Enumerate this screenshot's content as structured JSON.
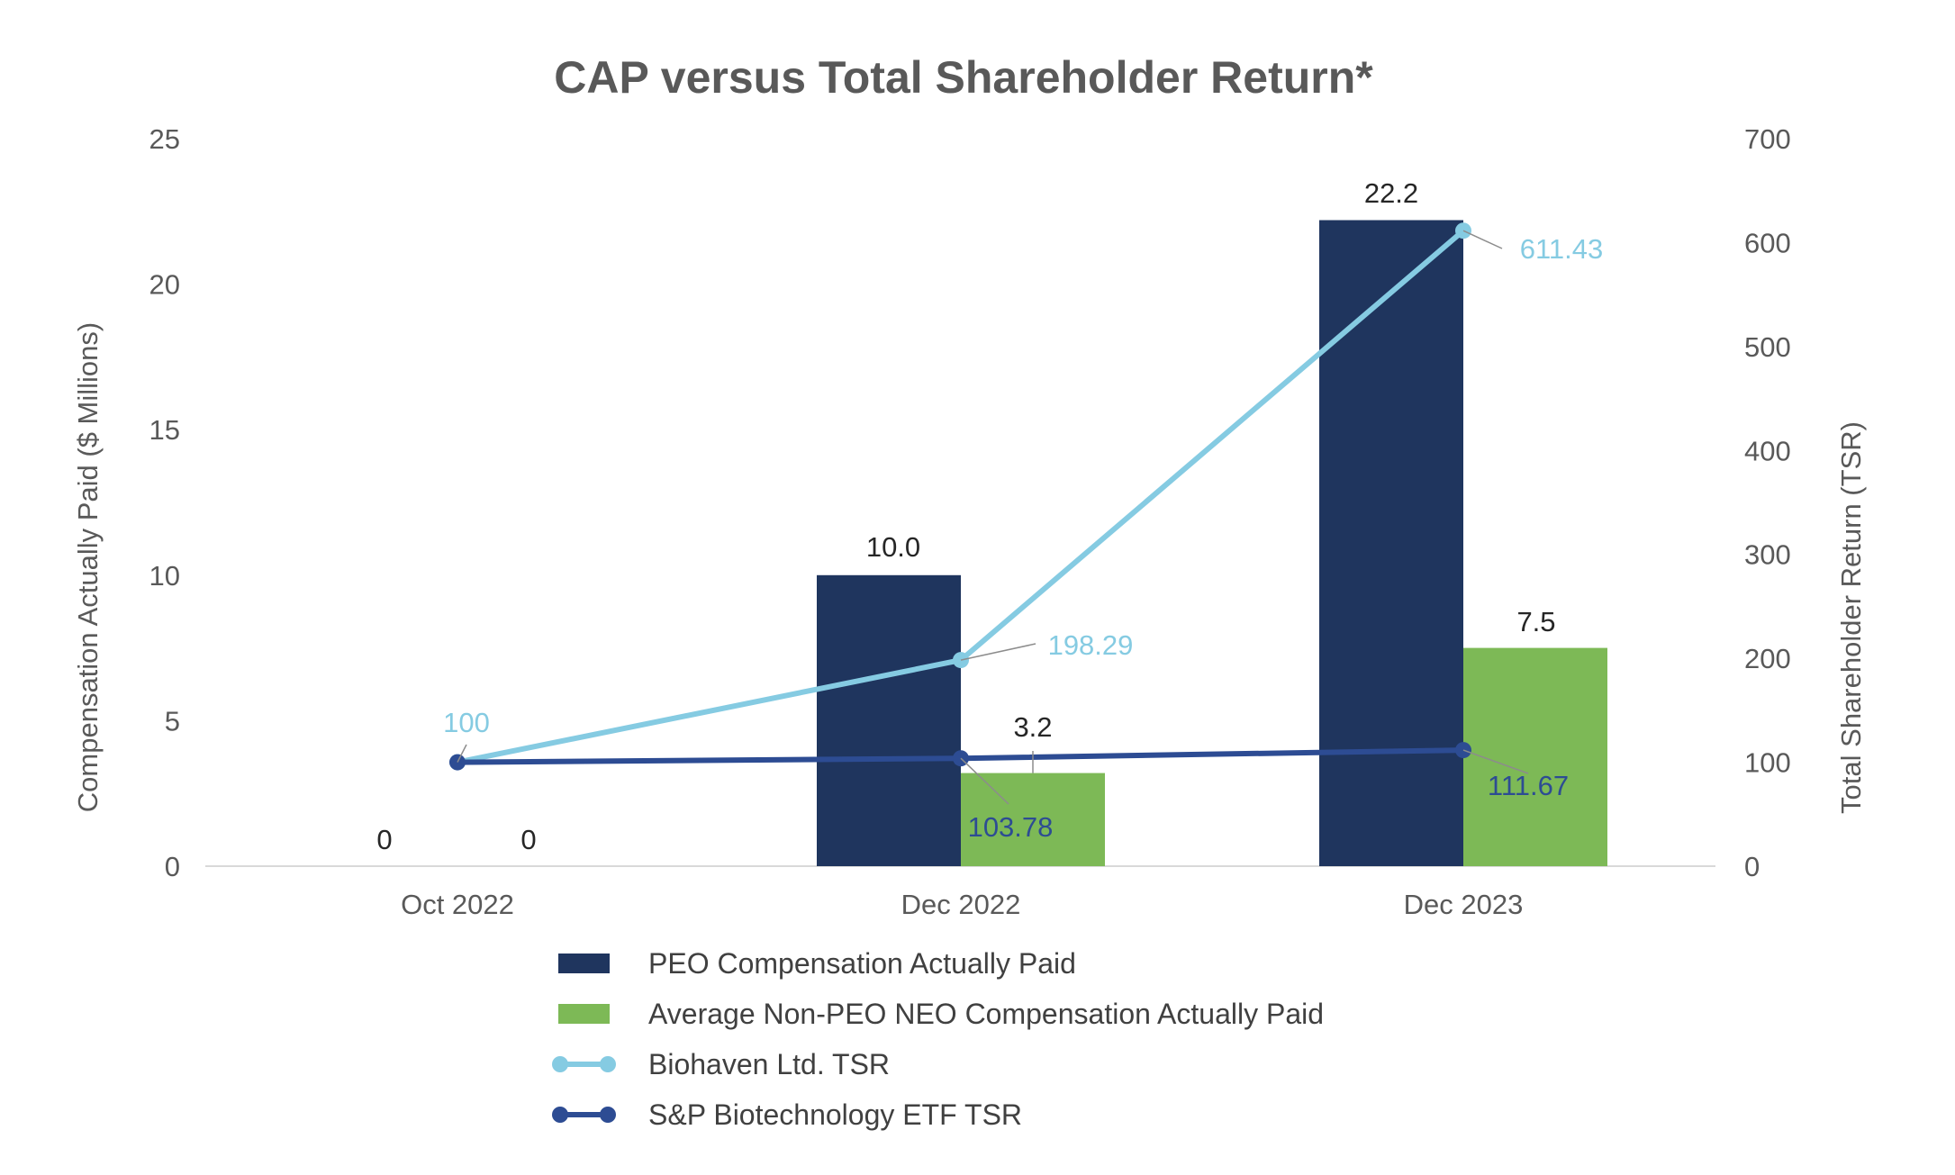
{
  "chart_data": {
    "type": "bar",
    "title": "CAP versus Total Shareholder Return*",
    "categories": [
      "Oct 2022",
      "Dec 2022",
      "Dec 2023"
    ],
    "ylabel": "Compensation Actually Paid ($ Millions)",
    "ylabel_right": "Total Shareholder Return (TSR)",
    "ylim": [
      0,
      25
    ],
    "ylim_right": [
      0,
      700
    ],
    "yticks": [
      "0",
      "5",
      "10",
      "15",
      "20",
      "25"
    ],
    "yticks_right": [
      "0",
      "100",
      "200",
      "300",
      "400",
      "500",
      "600",
      "700"
    ],
    "grid": false,
    "legend_position": "bottom",
    "series": [
      {
        "name": "PEO Compensation Actually Paid",
        "type": "bar",
        "axis": "left",
        "color": "#1F355E",
        "values": [
          0,
          10.0,
          22.2
        ],
        "labels": [
          "0",
          "10.0",
          "22.2"
        ]
      },
      {
        "name": "Average Non-PEO NEO Compensation Actually Paid",
        "type": "bar",
        "axis": "left",
        "color": "#7DB956",
        "values": [
          0,
          3.2,
          7.5
        ],
        "labels": [
          "0",
          "3.2",
          "7.5"
        ]
      },
      {
        "name": "Biohaven Ltd. TSR",
        "type": "line",
        "axis": "right",
        "color": "#85CBE2",
        "values": [
          100,
          198.29,
          611.43
        ],
        "labels": [
          "100",
          "198.29",
          "611.43"
        ]
      },
      {
        "name": "S&P Biotechnology ETF TSR",
        "type": "line",
        "axis": "right",
        "color": "#2D4C93",
        "values": [
          100,
          103.78,
          111.67
        ],
        "labels": [
          "",
          "103.78",
          "111.67"
        ]
      }
    ]
  }
}
